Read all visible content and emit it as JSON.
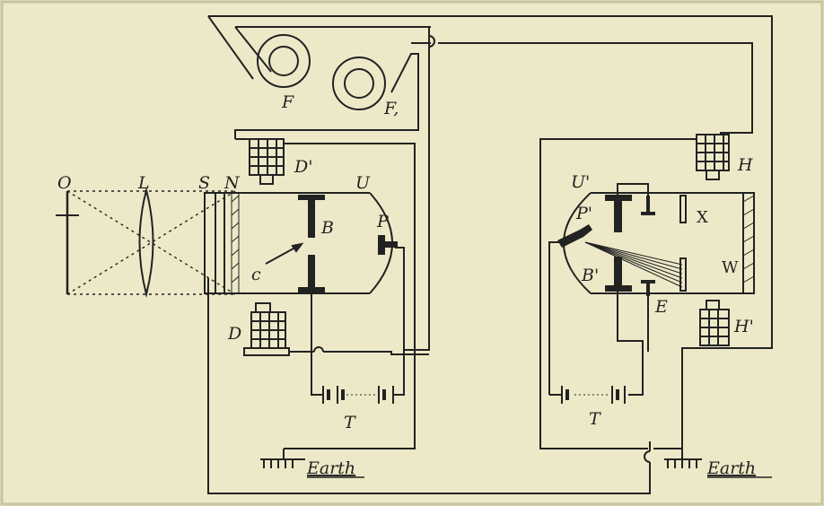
{
  "labels": {
    "O": "O",
    "L": "L",
    "S": "S",
    "N": "N",
    "U": "U",
    "B": "B",
    "P": "P",
    "c": "c",
    "D": "D",
    "D_prime": "D'",
    "F": "F",
    "F1": "F,",
    "T_left": "T",
    "T_right": "T",
    "U_prime": "U'",
    "P_prime": "P'",
    "B_prime": "B'",
    "E": "E",
    "X": "X",
    "W": "W",
    "H": "H",
    "H_prime": "H'"
  },
  "earth_left": "Earth",
  "earth_right": "Earth",
  "colors": {
    "paper": "#ede9c8",
    "ink": "#222222",
    "border": "#c8c2a0"
  }
}
